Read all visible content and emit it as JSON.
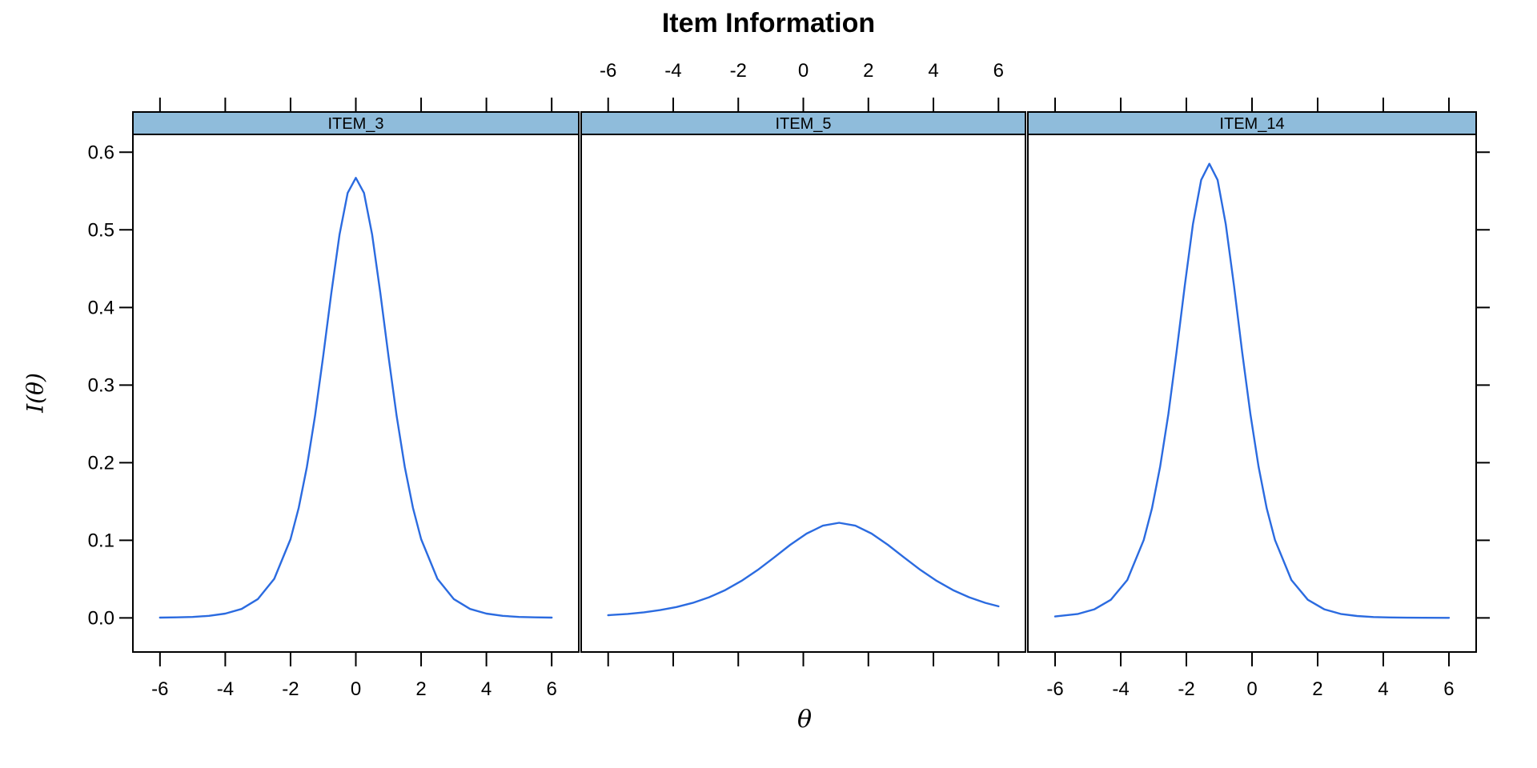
{
  "title": "Item Information",
  "xlabel": "θ",
  "ylabel": "I(θ)",
  "chart_data": {
    "type": "line",
    "title": "Item Information",
    "xlabel": "θ",
    "ylabel": "I(θ)",
    "xlim": [
      -6.83,
      6.83
    ],
    "ylim": [
      -0.044,
      0.623
    ],
    "x_ticks": [
      -6,
      -4,
      -2,
      0,
      2,
      4,
      6
    ],
    "y_ticks": [
      0.0,
      0.1,
      0.2,
      0.3,
      0.4,
      0.5,
      0.6
    ],
    "grid": "off",
    "legend": "none",
    "line_color": "#2B6BE0",
    "strip_color": "#8FBCDB",
    "panel_border_color": "#000000",
    "panels": [
      {
        "label": "ITEM_3",
        "peak": {
          "theta": 0.0,
          "info": 0.567
        },
        "points": [
          [
            -6,
            0.0003
          ],
          [
            -5.5,
            0.0006
          ],
          [
            -5,
            0.0012
          ],
          [
            -4.5,
            0.0026
          ],
          [
            -4,
            0.0055
          ],
          [
            -3.5,
            0.0115
          ],
          [
            -3,
            0.0242
          ],
          [
            -2.5,
            0.0503
          ],
          [
            -2,
            0.1014
          ],
          [
            -1.75,
            0.1416
          ],
          [
            -1.5,
            0.1941
          ],
          [
            -1.25,
            0.26
          ],
          [
            -1,
            0.337
          ],
          [
            -0.75,
            0.4187
          ],
          [
            -0.5,
            0.4937
          ],
          [
            -0.25,
            0.5475
          ],
          [
            0,
            0.567
          ],
          [
            0.25,
            0.5475
          ],
          [
            0.5,
            0.4937
          ],
          [
            0.75,
            0.4187
          ],
          [
            1,
            0.337
          ],
          [
            1.25,
            0.26
          ],
          [
            1.5,
            0.1941
          ],
          [
            1.75,
            0.1416
          ],
          [
            2,
            0.1014
          ],
          [
            2.5,
            0.0503
          ],
          [
            3,
            0.0242
          ],
          [
            3.5,
            0.0115
          ],
          [
            4,
            0.0055
          ],
          [
            4.5,
            0.0026
          ],
          [
            5,
            0.0012
          ],
          [
            5.5,
            0.0006
          ],
          [
            6,
            0.0003
          ]
        ]
      },
      {
        "label": "ITEM_5",
        "peak": {
          "theta": 1.1,
          "info": 0.1225
        },
        "points": [
          [
            -6,
            0.0034
          ],
          [
            -5.4,
            0.0051
          ],
          [
            -4.9,
            0.0071
          ],
          [
            -4.4,
            0.01
          ],
          [
            -3.9,
            0.0139
          ],
          [
            -3.4,
            0.0193
          ],
          [
            -2.9,
            0.0265
          ],
          [
            -2.4,
            0.0358
          ],
          [
            -1.9,
            0.0476
          ],
          [
            -1.4,
            0.0618
          ],
          [
            -0.9,
            0.0778
          ],
          [
            -0.4,
            0.0941
          ],
          [
            0.1,
            0.1086
          ],
          [
            0.6,
            0.1188
          ],
          [
            1.1,
            0.1225
          ],
          [
            1.6,
            0.1188
          ],
          [
            2.1,
            0.1086
          ],
          [
            2.6,
            0.0941
          ],
          [
            3.1,
            0.0778
          ],
          [
            3.6,
            0.0618
          ],
          [
            4.1,
            0.0476
          ],
          [
            4.6,
            0.0358
          ],
          [
            5.1,
            0.0265
          ],
          [
            5.6,
            0.0193
          ],
          [
            6,
            0.0149
          ]
        ]
      },
      {
        "label": "ITEM_14",
        "peak": {
          "theta": -1.3,
          "info": 0.585
        },
        "points": [
          [
            -6,
            0.0018
          ],
          [
            -5.3,
            0.0051
          ],
          [
            -4.8,
            0.011
          ],
          [
            -4.3,
            0.0233
          ],
          [
            -3.8,
            0.0488
          ],
          [
            -3.3,
            0.1002
          ],
          [
            -3.05,
            0.1409
          ],
          [
            -2.8,
            0.1948
          ],
          [
            -2.55,
            0.2625
          ],
          [
            -2.3,
            0.3425
          ],
          [
            -2.05,
            0.4281
          ],
          [
            -1.8,
            0.5073
          ],
          [
            -1.55,
            0.5643
          ],
          [
            -1.3,
            0.5852
          ],
          [
            -1.05,
            0.5643
          ],
          [
            -0.8,
            0.5073
          ],
          [
            -0.55,
            0.4281
          ],
          [
            -0.3,
            0.3425
          ],
          [
            -0.05,
            0.2625
          ],
          [
            0.2,
            0.1948
          ],
          [
            0.45,
            0.1409
          ],
          [
            0.7,
            0.1002
          ],
          [
            1.2,
            0.0488
          ],
          [
            1.7,
            0.0233
          ],
          [
            2.2,
            0.011
          ],
          [
            2.7,
            0.0051
          ],
          [
            3.2,
            0.0024
          ],
          [
            3.7,
            0.0011
          ],
          [
            4.2,
            0.0005
          ],
          [
            4.7,
            0.0002
          ],
          [
            5.2,
            0.0001
          ],
          [
            6,
            0.0
          ]
        ]
      }
    ]
  }
}
